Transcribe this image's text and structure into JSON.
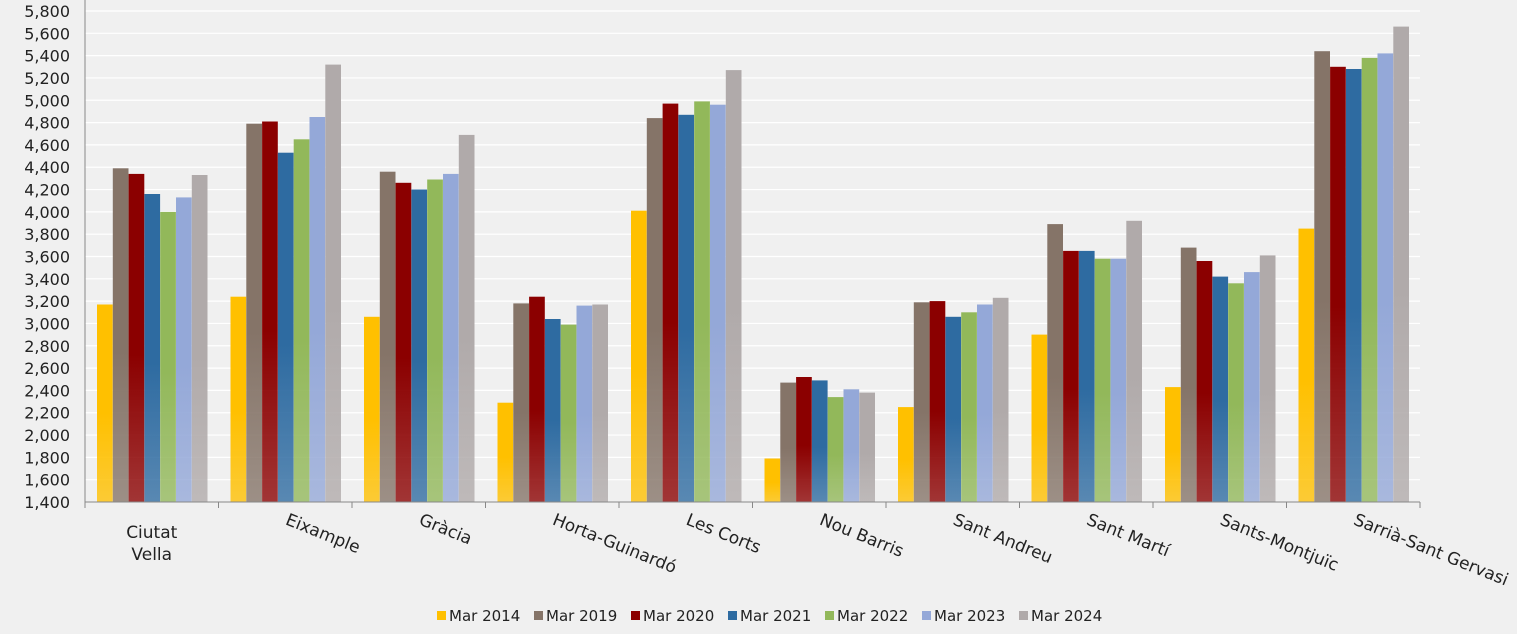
{
  "chart_data": {
    "type": "bar",
    "title": "",
    "xlabel": "",
    "ylabel": "",
    "ylim": [
      1400,
      5800
    ],
    "ytick_step": 200,
    "ytick_labels": [
      "1,400",
      "1,600",
      "1,800",
      "2,000",
      "2,200",
      "2,400",
      "2,600",
      "2,800",
      "3,000",
      "3,200",
      "3,400",
      "3,600",
      "3,800",
      "4,000",
      "4,200",
      "4,400",
      "4,600",
      "4,800",
      "5,000",
      "5,200",
      "5,400",
      "5,600",
      "5,800"
    ],
    "grid": true,
    "legend_position": "bottom",
    "categories": [
      "Ciutat Vella",
      "Eixample",
      "Gràcia",
      "Horta-Guinardó",
      "Les Corts",
      "Nou Barris",
      "Sant Andreu",
      "Sant Martí",
      "Sants-Montjuïc",
      "Sarrià-Sant Gervasi"
    ],
    "series": [
      {
        "name": "Mar 2014",
        "color": "#FFC000",
        "values": [
          3170,
          3240,
          3060,
          2290,
          4010,
          1790,
          2250,
          2900,
          2430,
          3850
        ]
      },
      {
        "name": "Mar 2019",
        "color": "#857468",
        "values": [
          4390,
          4790,
          4360,
          3180,
          4840,
          2470,
          3190,
          3890,
          3680,
          5440
        ]
      },
      {
        "name": "Mar 2020",
        "color": "#8B0000",
        "values": [
          4340,
          4810,
          4260,
          3240,
          4970,
          2520,
          3200,
          3650,
          3560,
          5300
        ]
      },
      {
        "name": "Mar 2021",
        "color": "#2E6BA1",
        "values": [
          4160,
          4530,
          4200,
          3040,
          4870,
          2490,
          3060,
          3650,
          3420,
          5280
        ]
      },
      {
        "name": "Mar 2022",
        "color": "#92B85A",
        "values": [
          4000,
          4650,
          4290,
          2990,
          4990,
          2340,
          3100,
          3580,
          3360,
          5380
        ]
      },
      {
        "name": "Mar 2023",
        "color": "#94A8D8",
        "values": [
          4130,
          4850,
          4340,
          3160,
          4960,
          2410,
          3170,
          3580,
          3460,
          5420
        ]
      },
      {
        "name": "Mar 2024",
        "color": "#B0AAAA",
        "values": [
          4330,
          5320,
          4690,
          3170,
          5270,
          2380,
          3230,
          3920,
          3610,
          5660
        ]
      }
    ]
  }
}
